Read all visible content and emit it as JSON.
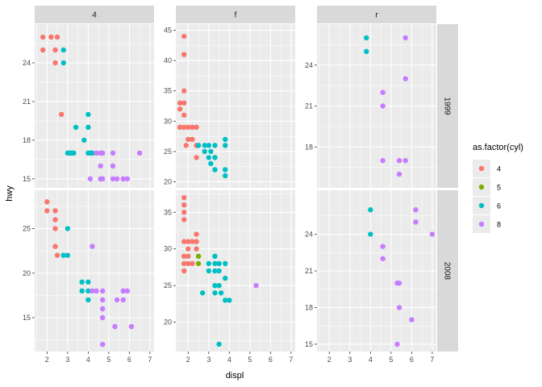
{
  "chart_data": {
    "type": "scatter",
    "xlabel": "displ",
    "ylabel": "hwy",
    "legend": {
      "title": "as.factor(cyl)",
      "placement": "right",
      "entries": [
        {
          "label": "4",
          "color": "#F8766D"
        },
        {
          "label": "5",
          "color": "#7CAE00"
        },
        {
          "label": "6",
          "color": "#00BFC4"
        },
        {
          "label": "8",
          "color": "#C77CFF"
        }
      ]
    },
    "columns": [
      "4",
      "f",
      "r"
    ],
    "rows": [
      "1999",
      "2008"
    ],
    "xlim": [
      1.4,
      7.2
    ],
    "x_ticks": [
      "2",
      "3",
      "4",
      "5",
      "6",
      "7"
    ],
    "grid": true,
    "panels": [
      {
        "col": "4",
        "row": "1999",
        "ylim": [
          14.3,
          27.0
        ],
        "y_ticks": [
          "15",
          "18",
          "21",
          "24"
        ],
        "points": [
          [
            1.8,
            26,
            "4"
          ],
          [
            2.2,
            26,
            "4"
          ],
          [
            2.5,
            26,
            "4"
          ],
          [
            1.8,
            25,
            "4"
          ],
          [
            2.4,
            25,
            "4"
          ],
          [
            2.4,
            24,
            "4"
          ],
          [
            2.7,
            20,
            "4"
          ],
          [
            2.8,
            25,
            "6"
          ],
          [
            2.8,
            24,
            "6"
          ],
          [
            4.0,
            20,
            "6"
          ],
          [
            3.4,
            19,
            "6"
          ],
          [
            4.0,
            19,
            "6"
          ],
          [
            3.8,
            18,
            "6"
          ],
          [
            3.0,
            17,
            "6"
          ],
          [
            3.1,
            17,
            "6"
          ],
          [
            3.2,
            17,
            "6"
          ],
          [
            3.3,
            17,
            "6"
          ],
          [
            4.0,
            17,
            "6"
          ],
          [
            4.1,
            17,
            "6"
          ],
          [
            4.2,
            17,
            "6"
          ],
          [
            4.4,
            17,
            "8"
          ],
          [
            4.6,
            17,
            "8"
          ],
          [
            4.7,
            17,
            "8"
          ],
          [
            5.2,
            17,
            "8"
          ],
          [
            6.5,
            17,
            "8"
          ],
          [
            4.6,
            16,
            "8"
          ],
          [
            5.2,
            16,
            "8"
          ],
          [
            4.1,
            15,
            "8"
          ],
          [
            4.6,
            15,
            "8"
          ],
          [
            4.7,
            15,
            "8"
          ],
          [
            5.2,
            15,
            "8"
          ],
          [
            5.4,
            15,
            "8"
          ],
          [
            5.7,
            15,
            "8"
          ],
          [
            5.9,
            15,
            "8"
          ]
        ]
      },
      {
        "col": "f",
        "row": "1999",
        "ylim": [
          19.0,
          46.0
        ],
        "y_ticks": [
          "20",
          "25",
          "30",
          "35",
          "40",
          "45"
        ],
        "points": [
          [
            1.8,
            44,
            "4"
          ],
          [
            1.8,
            41,
            "4"
          ],
          [
            1.8,
            35,
            "4"
          ],
          [
            1.6,
            33,
            "4"
          ],
          [
            1.8,
            33,
            "4"
          ],
          [
            1.6,
            32,
            "4"
          ],
          [
            1.8,
            31,
            "4"
          ],
          [
            1.6,
            29,
            "4"
          ],
          [
            1.8,
            29,
            "4"
          ],
          [
            2.0,
            29,
            "4"
          ],
          [
            2.2,
            29,
            "4"
          ],
          [
            2.4,
            29,
            "4"
          ],
          [
            2.0,
            27,
            "4"
          ],
          [
            2.2,
            27,
            "4"
          ],
          [
            1.9,
            26,
            "4"
          ],
          [
            2.4,
            26,
            "4"
          ],
          [
            2.4,
            24,
            "4"
          ],
          [
            2.5,
            26,
            "6"
          ],
          [
            2.8,
            26,
            "6"
          ],
          [
            3.0,
            26,
            "6"
          ],
          [
            3.3,
            26,
            "6"
          ],
          [
            3.8,
            27,
            "6"
          ],
          [
            3.8,
            26,
            "6"
          ],
          [
            2.8,
            25,
            "6"
          ],
          [
            3.1,
            25,
            "6"
          ],
          [
            3.0,
            24,
            "6"
          ],
          [
            3.3,
            24,
            "6"
          ],
          [
            3.1,
            23,
            "6"
          ],
          [
            3.3,
            22,
            "6"
          ],
          [
            3.8,
            22,
            "6"
          ],
          [
            3.8,
            21,
            "6"
          ]
        ]
      },
      {
        "col": "r",
        "row": "1999",
        "ylim": [
          15.0,
          27.0
        ],
        "y_ticks": [
          "18",
          "21",
          "24"
        ],
        "points": [
          [
            3.8,
            26,
            "6"
          ],
          [
            3.8,
            25,
            "6"
          ],
          [
            5.7,
            26,
            "8"
          ],
          [
            5.7,
            23,
            "8"
          ],
          [
            4.6,
            22,
            "8"
          ],
          [
            4.6,
            21,
            "8"
          ],
          [
            4.6,
            17,
            "8"
          ],
          [
            5.4,
            17,
            "8"
          ],
          [
            5.7,
            17,
            "8"
          ],
          [
            5.4,
            16,
            "8"
          ]
        ]
      },
      {
        "col": "4",
        "row": "2008",
        "ylim": [
          11.2,
          29.3
        ],
        "y_ticks": [
          "15",
          "20",
          "25"
        ],
        "points": [
          [
            2.0,
            28,
            "4"
          ],
          [
            2.0,
            27,
            "4"
          ],
          [
            2.4,
            27,
            "4"
          ],
          [
            2.4,
            26,
            "4"
          ],
          [
            2.4,
            25,
            "4"
          ],
          [
            2.4,
            23,
            "4"
          ],
          [
            2.5,
            22,
            "4"
          ],
          [
            3.0,
            25,
            "6"
          ],
          [
            2.8,
            22,
            "6"
          ],
          [
            3.0,
            22,
            "6"
          ],
          [
            3.7,
            19,
            "6"
          ],
          [
            4.0,
            19,
            "6"
          ],
          [
            3.7,
            18,
            "6"
          ],
          [
            4.0,
            18,
            "6"
          ],
          [
            4.0,
            17,
            "6"
          ],
          [
            4.2,
            23,
            "8"
          ],
          [
            4.2,
            18,
            "8"
          ],
          [
            4.4,
            18,
            "8"
          ],
          [
            4.7,
            18,
            "8"
          ],
          [
            5.7,
            18,
            "8"
          ],
          [
            5.9,
            18,
            "8"
          ],
          [
            4.7,
            17,
            "8"
          ],
          [
            5.4,
            17,
            "8"
          ],
          [
            5.7,
            17,
            "8"
          ],
          [
            4.7,
            16,
            "8"
          ],
          [
            4.7,
            15,
            "8"
          ],
          [
            5.3,
            14,
            "8"
          ],
          [
            6.1,
            14,
            "8"
          ],
          [
            4.7,
            12,
            "8"
          ]
        ]
      },
      {
        "col": "f",
        "row": "2008",
        "ylim": [
          16.0,
          38.0
        ],
        "y_ticks": [
          "20",
          "25",
          "30",
          "35"
        ],
        "points": [
          [
            1.8,
            37,
            "4"
          ],
          [
            1.8,
            36,
            "4"
          ],
          [
            1.8,
            35,
            "4"
          ],
          [
            1.8,
            34,
            "4"
          ],
          [
            2.4,
            32,
            "4"
          ],
          [
            1.8,
            31,
            "4"
          ],
          [
            2.0,
            31,
            "4"
          ],
          [
            2.2,
            31,
            "4"
          ],
          [
            2.4,
            31,
            "4"
          ],
          [
            2.0,
            30,
            "4"
          ],
          [
            2.4,
            30,
            "4"
          ],
          [
            1.8,
            29,
            "4"
          ],
          [
            2.0,
            29,
            "4"
          ],
          [
            1.8,
            28,
            "4"
          ],
          [
            2.0,
            28,
            "4"
          ],
          [
            2.2,
            28,
            "4"
          ],
          [
            1.8,
            27,
            "4"
          ],
          [
            2.5,
            29,
            "5"
          ],
          [
            2.5,
            28,
            "5"
          ],
          [
            3.3,
            29,
            "6"
          ],
          [
            3.0,
            28,
            "6"
          ],
          [
            3.3,
            28,
            "6"
          ],
          [
            3.5,
            28,
            "6"
          ],
          [
            3.8,
            28,
            "6"
          ],
          [
            3.0,
            27,
            "6"
          ],
          [
            3.3,
            27,
            "6"
          ],
          [
            3.5,
            27,
            "6"
          ],
          [
            3.8,
            26,
            "6"
          ],
          [
            3.3,
            25,
            "6"
          ],
          [
            3.5,
            25,
            "6"
          ],
          [
            3.6,
            24,
            "6"
          ],
          [
            2.7,
            24,
            "6"
          ],
          [
            3.3,
            24,
            "6"
          ],
          [
            3.8,
            23,
            "6"
          ],
          [
            4.0,
            23,
            "6"
          ],
          [
            3.5,
            17,
            "6"
          ],
          [
            5.3,
            25,
            "8"
          ]
        ]
      },
      {
        "col": "r",
        "row": "2008",
        "ylim": [
          14.4,
          27.6
        ],
        "y_ticks": [
          "15",
          "18",
          "21",
          "24"
        ],
        "points": [
          [
            4.0,
            26,
            "6"
          ],
          [
            4.0,
            24,
            "6"
          ],
          [
            6.2,
            26,
            "8"
          ],
          [
            6.2,
            25,
            "8"
          ],
          [
            7.0,
            24,
            "8"
          ],
          [
            4.6,
            23,
            "8"
          ],
          [
            4.6,
            22,
            "8"
          ],
          [
            5.3,
            20,
            "8"
          ],
          [
            5.4,
            20,
            "8"
          ],
          [
            5.4,
            18,
            "8"
          ],
          [
            6.0,
            17,
            "8"
          ],
          [
            5.3,
            15,
            "8"
          ]
        ]
      }
    ]
  }
}
